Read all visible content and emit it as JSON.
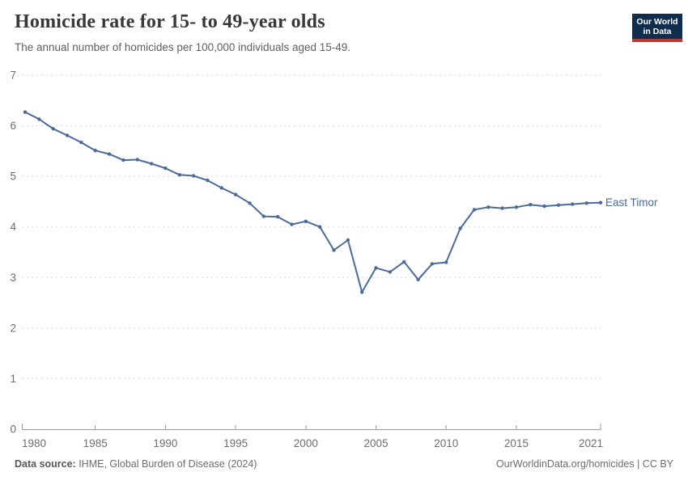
{
  "header": {
    "title": "Homicide rate for 15- to 49-year olds",
    "subtitle": "The annual number of homicides per 100,000 individuals aged 15-49.",
    "logo": {
      "line1": "Our World",
      "line2": "in Data"
    }
  },
  "chart_data": {
    "type": "line",
    "title": "Homicide rate for 15- to 49-year olds",
    "xlabel": "",
    "ylabel": "",
    "xlim": [
      1980,
      2021
    ],
    "ylim": [
      0,
      7
    ],
    "grid": "horizontal-dashed",
    "legend_position": "end-of-line",
    "x_tick_labels": [
      "1980",
      "1985",
      "1990",
      "1995",
      "2000",
      "2005",
      "2010",
      "2015",
      "2021"
    ],
    "y_tick_labels": [
      "0",
      "1",
      "2",
      "3",
      "4",
      "5",
      "6",
      "7"
    ],
    "x": [
      1980,
      1981,
      1982,
      1983,
      1984,
      1985,
      1986,
      1987,
      1988,
      1989,
      1990,
      1991,
      1992,
      1993,
      1994,
      1995,
      1996,
      1997,
      1998,
      1999,
      2000,
      2001,
      2002,
      2003,
      2004,
      2005,
      2006,
      2007,
      2008,
      2009,
      2010,
      2011,
      2012,
      2013,
      2014,
      2015,
      2016,
      2017,
      2018,
      2019,
      2020,
      2021
    ],
    "series": [
      {
        "name": "East Timor",
        "color": "#4c6a9c",
        "values": [
          6.27,
          6.13,
          5.94,
          5.81,
          5.67,
          5.51,
          5.44,
          5.32,
          5.33,
          5.25,
          5.16,
          5.03,
          5.01,
          4.92,
          4.77,
          4.64,
          4.47,
          4.21,
          4.2,
          4.05,
          4.11,
          4.0,
          3.54,
          3.74,
          2.71,
          3.19,
          3.11,
          3.31,
          2.96,
          3.27,
          3.3,
          3.97,
          4.34,
          4.39,
          4.37,
          4.39,
          4.44,
          4.41,
          4.43,
          4.45,
          4.47,
          4.48
        ]
      }
    ]
  },
  "footer": {
    "source_label": "Data source:",
    "source_text": " IHME, Global Burden of Disease (2024)",
    "credit": "OurWorldinData.org/homicides | CC BY"
  },
  "colors": {
    "accent_line": "#4c6a9c",
    "logo_bg": "#102d4e",
    "logo_bar": "#c0362c",
    "gridline": "#dadada",
    "axis": "#9c9c9c",
    "tick_text": "#6e6e6e"
  }
}
